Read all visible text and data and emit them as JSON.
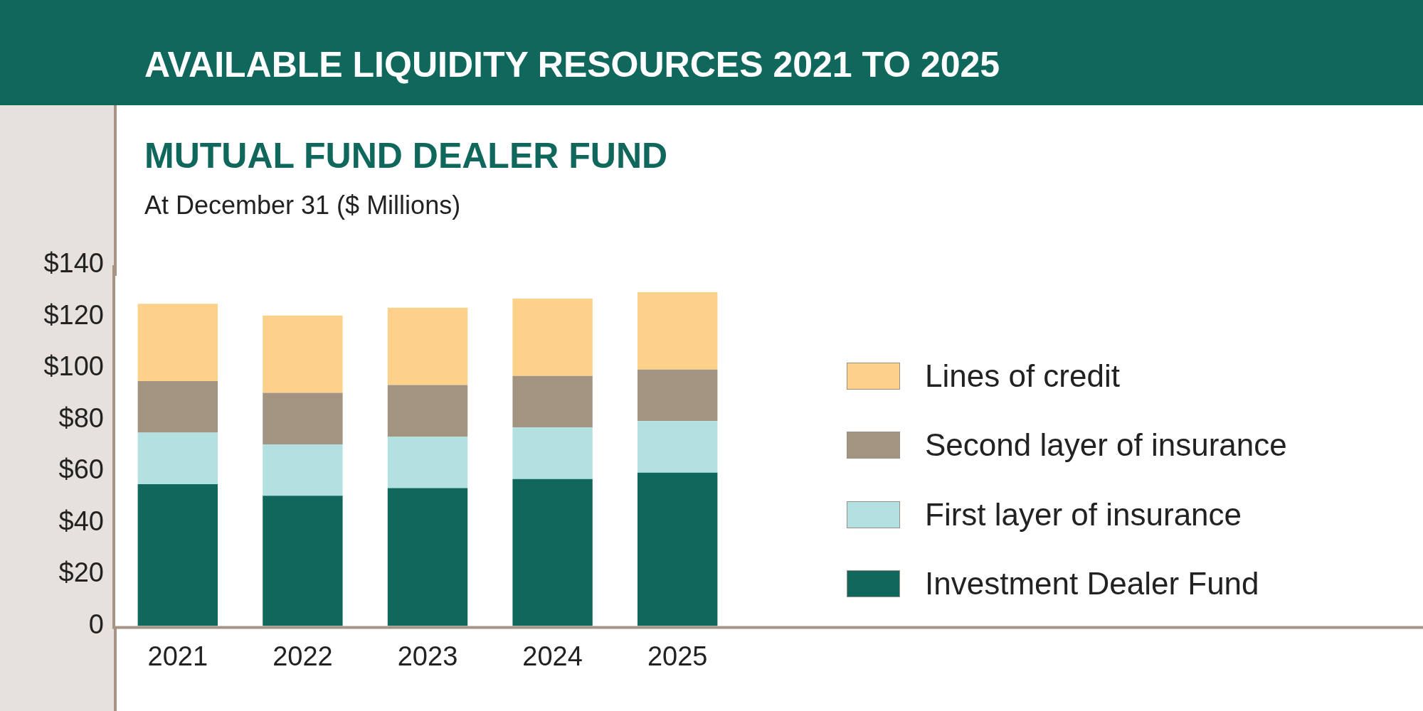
{
  "chart_data": {
    "type": "bar",
    "title": "AVAILABLE LIQUIDITY RESOURCES 2021 TO 2025",
    "subtitle": "MUTUAL FUND DEALER FUND",
    "annotations": [
      "At December 31 ($ Millions)"
    ],
    "categories": [
      "2021",
      "2022",
      "2023",
      "2024",
      "2025"
    ],
    "stacked": true,
    "series": [
      {
        "name": "Investment Dealer Fund",
        "color": "#10675c",
        "values": [
          55,
          50.5,
          53.5,
          57,
          59.5
        ]
      },
      {
        "name": "First layer of insurance",
        "color": "#b3e0e0",
        "values": [
          20,
          20,
          20,
          20,
          20
        ]
      },
      {
        "name": "Second layer of insurance",
        "color": "#a39482",
        "values": [
          20,
          20,
          20,
          20,
          20
        ]
      },
      {
        "name": "Lines of credit",
        "color": "#fdd189",
        "values": [
          30,
          30,
          30,
          30,
          30
        ]
      }
    ],
    "ylim": [
      0,
      140
    ],
    "yticks": [
      0,
      {
        "value": 20,
        "label": "$20"
      },
      {
        "value": 40,
        "label": "$40"
      },
      {
        "value": 60,
        "label": "$60"
      },
      {
        "value": 80,
        "label": "$80"
      },
      {
        "value": 100,
        "label": "$100"
      },
      {
        "value": 120,
        "label": "$120"
      },
      {
        "value": 140,
        "label": "$140"
      }
    ],
    "grid": false,
    "legend": "right"
  }
}
